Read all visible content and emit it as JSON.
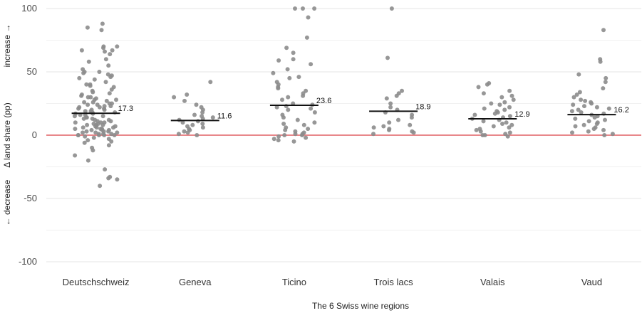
{
  "chart_data": {
    "type": "scatter",
    "xlabel": "The 6 Swiss wine regions",
    "ylabel": "Δ land share (pp)",
    "ylabel_increase": "increase →",
    "ylabel_decrease": "← decrease",
    "ylim": [
      -100,
      100
    ],
    "yticks": [
      -100,
      -50,
      0,
      50,
      100
    ],
    "reference_line": 0,
    "reference_color": "#e8878a",
    "point_color": "#8c8c8c",
    "grid": true,
    "categories": [
      "Deutschschweiz",
      "Geneva",
      "Ticino",
      "Trois lacs",
      "Valais",
      "Vaud"
    ],
    "means": [
      17.3,
      11.6,
      23.6,
      18.9,
      12.9,
      16.2
    ],
    "mean_labels": [
      "17.3",
      "11.6",
      "23.6",
      "18.9",
      "12.9",
      "16.2"
    ],
    "series": [
      {
        "values": [
          88,
          85,
          83,
          70,
          70,
          69,
          67,
          67,
          66,
          64,
          60,
          58,
          55,
          52,
          50,
          50,
          49,
          48,
          47,
          46,
          45,
          44,
          42,
          40,
          40,
          39,
          38,
          36,
          35,
          34,
          33,
          32,
          31,
          30,
          30,
          29,
          28,
          28,
          27,
          26,
          26,
          25,
          25,
          24,
          24,
          23,
          23,
          22,
          22,
          21,
          21,
          20,
          20,
          19,
          19,
          18,
          18,
          18,
          17,
          17,
          16,
          16,
          15,
          15,
          14,
          14,
          13,
          13,
          12,
          12,
          11,
          11,
          10,
          10,
          10,
          9,
          9,
          8,
          8,
          8,
          7,
          7,
          6,
          6,
          6,
          5,
          5,
          5,
          4,
          4,
          4,
          3,
          3,
          3,
          2,
          2,
          2,
          1,
          1,
          1,
          0,
          0,
          0,
          0,
          0,
          -1,
          -2,
          -3,
          -4,
          -5,
          -6,
          -8,
          -10,
          -12,
          -16,
          -20,
          -27,
          -33,
          -34,
          -35,
          -40
        ]
      },
      {
        "values": [
          42,
          32,
          30,
          27,
          24,
          22,
          20,
          18,
          16,
          15,
          14,
          13,
          12,
          11,
          10,
          9,
          8,
          7,
          6,
          5,
          4,
          3,
          2,
          1,
          0
        ]
      },
      {
        "values": [
          100,
          100,
          100,
          93,
          77,
          69,
          65,
          60,
          59,
          56,
          52,
          49,
          46,
          45,
          42,
          40,
          38,
          37,
          35,
          33,
          31,
          30,
          28,
          25,
          24,
          23,
          22,
          21,
          20,
          18,
          16,
          14,
          12,
          10,
          9,
          8,
          6,
          5,
          4,
          3,
          2,
          1,
          1,
          0,
          0,
          -1,
          -2,
          -3,
          -4,
          -5
        ]
      },
      {
        "values": [
          100,
          61,
          35,
          33,
          31,
          29,
          25,
          22,
          20,
          18,
          16,
          14,
          12,
          10,
          8,
          7,
          6,
          5,
          4,
          3,
          2,
          1
        ]
      },
      {
        "values": [
          41,
          40,
          38,
          35,
          33,
          31,
          30,
          28,
          26,
          25,
          24,
          22,
          21,
          20,
          19,
          18,
          17,
          16,
          15,
          14,
          13,
          12,
          11,
          10,
          9,
          8,
          7,
          6,
          5,
          4,
          3,
          2,
          1,
          0,
          0,
          -1
        ]
      },
      {
        "values": [
          83,
          60,
          58,
          48,
          45,
          42,
          37,
          34,
          32,
          30,
          28,
          27,
          26,
          25,
          24,
          23,
          22,
          21,
          20,
          19,
          18,
          17,
          16,
          15,
          14,
          13,
          12,
          11,
          10,
          9,
          8,
          7,
          6,
          5,
          4,
          3,
          2,
          1,
          0
        ]
      }
    ]
  }
}
